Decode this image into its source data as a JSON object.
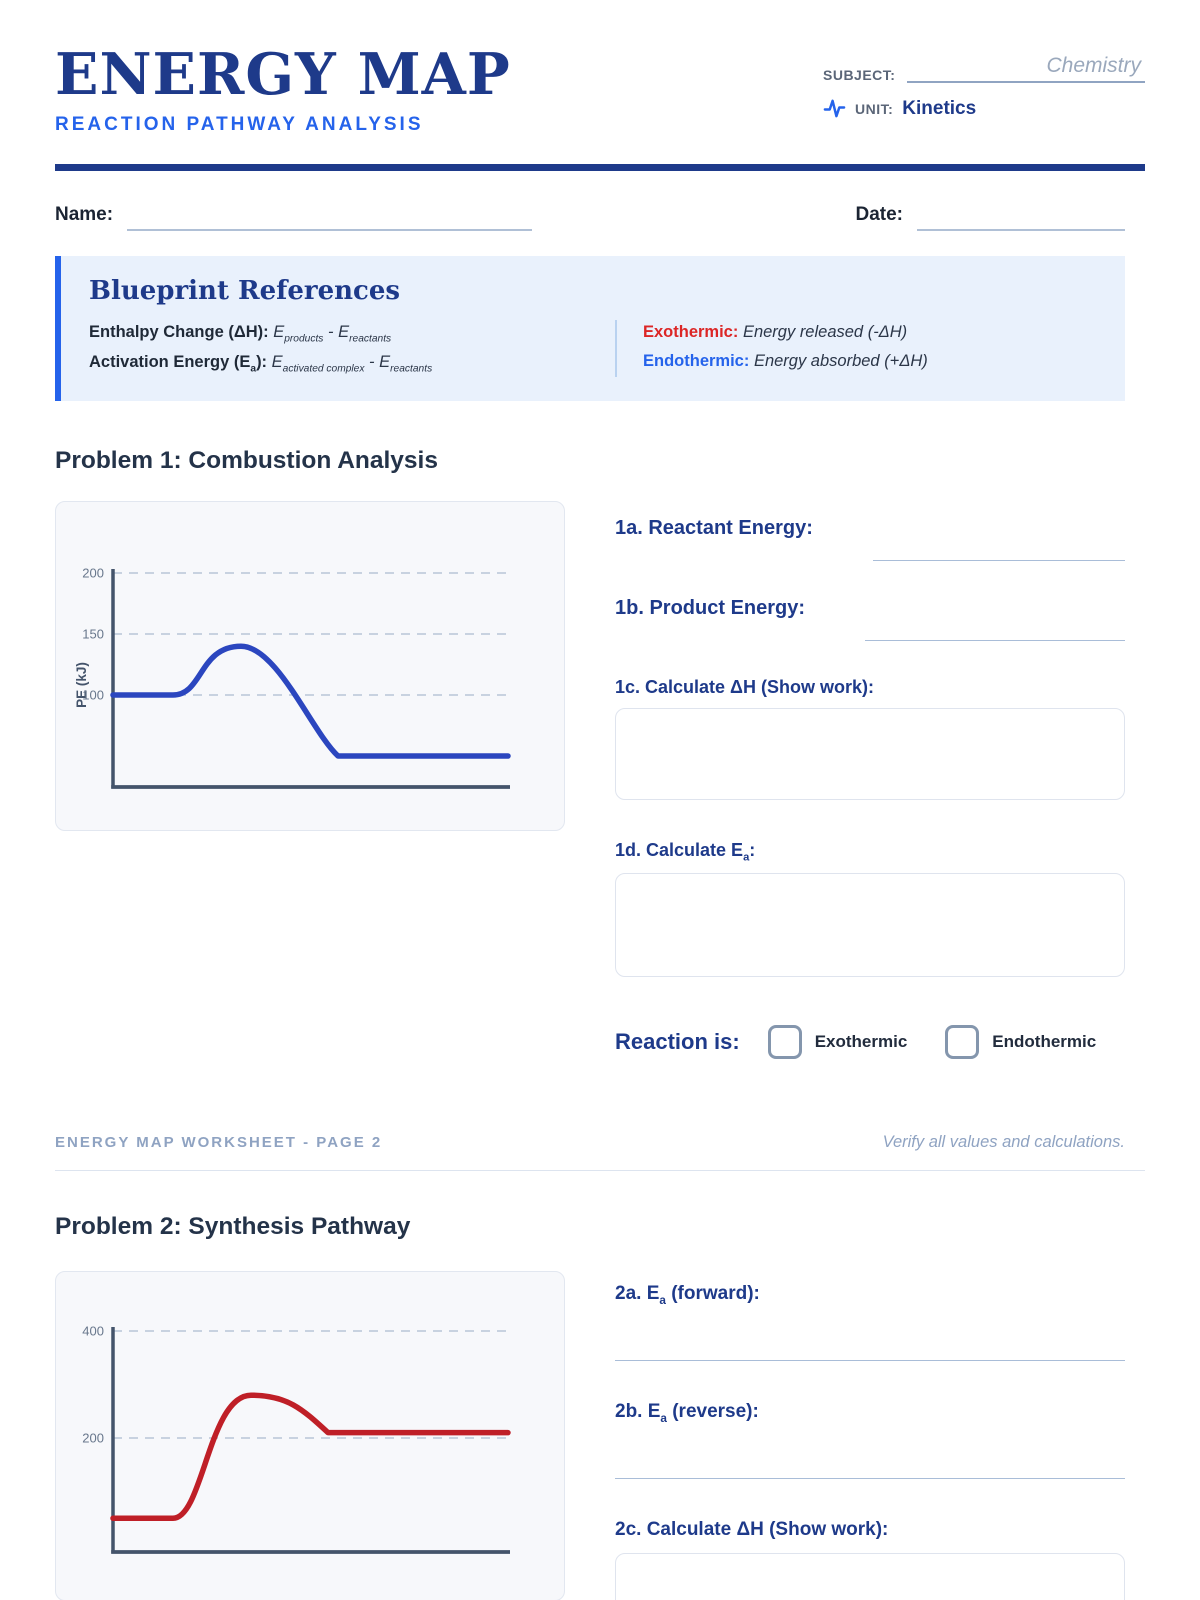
{
  "header": {
    "title": "ENERGY MAP",
    "subtitle": "REACTION PATHWAY ANALYSIS",
    "subject_label": "SUBJECT:",
    "subject_value": "Chemistry",
    "unit_label": "UNIT:",
    "unit_value": "Kinetics"
  },
  "fields": {
    "name_label": "Name:",
    "date_label": "Date:"
  },
  "reference": {
    "title": "Blueprint References",
    "enthalpy_label": "Enthalpy Change (ΔH):",
    "enthalpy_formula": {
      "e1": "E",
      "sub1": "products",
      "sep": " - ",
      "e2": "E",
      "sub2": "reactants"
    },
    "activation_label": {
      "pre": "Activation Energy (E",
      "sub": "a",
      "post": "):"
    },
    "activation_formula": {
      "e1": "E",
      "sub1": "activated complex",
      "sep": " - ",
      "e2": "E",
      "sub2": "reactants"
    },
    "exothermic_label": "Exothermic:",
    "exothermic_text": "Energy released (-ΔH)",
    "endothermic_label": "Endothermic:",
    "endothermic_text": "Energy absorbed (+ΔH)"
  },
  "problem1": {
    "title": "Problem 1: Combustion Analysis",
    "q1a": "1a. Reactant Energy:",
    "q1b": "1b. Product Energy:",
    "q1c": "1c. Calculate ΔH (Show work):",
    "q1d": {
      "pre": "1d. Calculate E",
      "sub": "a",
      "post": ":"
    },
    "reaction_is": "Reaction is:",
    "option_exothermic": "Exothermic",
    "option_endothermic": "Endothermic"
  },
  "footer": {
    "left": "ENERGY MAP WORKSHEET - PAGE 2",
    "right": "Verify all values and calculations."
  },
  "problem2": {
    "title": "Problem 2: Synthesis Pathway",
    "q2a": {
      "pre": "2a. E",
      "sub": "a",
      "post": " (forward):"
    },
    "q2b": {
      "pre": "2b. E",
      "sub": "a",
      "post": " (reverse):"
    },
    "q2c": "2c. Calculate ΔH (Show work):"
  },
  "chart_data": [
    {
      "type": "line",
      "description": "Potential energy reaction-pathway diagram, exothermic (Problem 1)",
      "ylabel": "PE (kJ)",
      "yticks": [
        200,
        150,
        100
      ],
      "reactant_energy": 100,
      "peak_energy": 140,
      "product_energy": 50,
      "line_color": "#2b46bf",
      "grid": "dashed horizontal gridlines at each y tick",
      "legend": "none"
    },
    {
      "type": "line",
      "description": "Potential energy reaction-pathway diagram, endothermic (Problem 2)",
      "ylabel": "",
      "yticks": [
        400,
        200
      ],
      "reactant_energy": 50,
      "peak_energy": 280,
      "product_energy": 210,
      "line_color": "#bf1f27",
      "grid": "dashed horizontal gridlines at each y tick",
      "legend": "none"
    }
  ],
  "colors": {
    "navy": "#1e3a8a",
    "accent_blue": "#2563eb",
    "exothermic_red": "#dc2626",
    "curve_blue": "#2b46bf",
    "curve_red": "#bf1f27",
    "muted_footer": "#8fa3c2"
  }
}
